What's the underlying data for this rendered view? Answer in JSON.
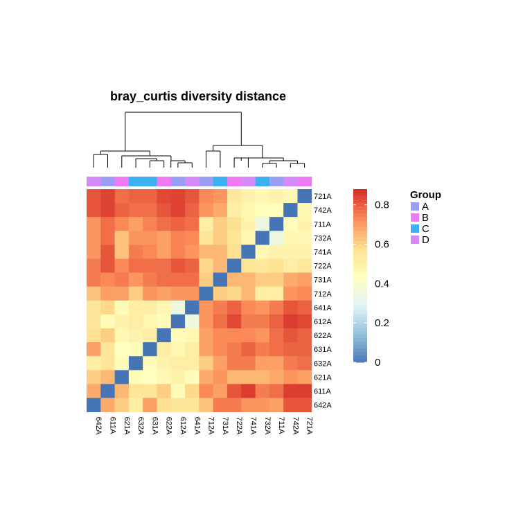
{
  "chart_data": {
    "type": "heatmap",
    "title": "bray_curtis diversity distance",
    "rows": [
      "721A",
      "742A",
      "711A",
      "732A",
      "741A",
      "722A",
      "731A",
      "712A",
      "641A",
      "612A",
      "622A",
      "631A",
      "632A",
      "621A",
      "611A",
      "642A"
    ],
    "cols": [
      "642A",
      "611A",
      "621A",
      "632A",
      "631A",
      "622A",
      "612A",
      "641A",
      "712A",
      "731A",
      "722A",
      "741A",
      "732A",
      "711A",
      "742A",
      "721A"
    ],
    "col_groups": [
      "D",
      "A",
      "B",
      "C",
      "C",
      "B",
      "A",
      "D",
      "A",
      "C",
      "B",
      "D",
      "C",
      "A",
      "D",
      "B"
    ],
    "values": [
      [
        0.82,
        0.85,
        0.78,
        0.8,
        0.8,
        0.84,
        0.85,
        0.82,
        0.74,
        0.72,
        0.55,
        0.5,
        0.48,
        0.5,
        0.48,
        0.0
      ],
      [
        0.82,
        0.85,
        0.8,
        0.78,
        0.78,
        0.82,
        0.85,
        0.8,
        0.72,
        0.68,
        0.52,
        0.48,
        0.45,
        0.45,
        0.0,
        0.48
      ],
      [
        0.72,
        0.78,
        0.74,
        0.7,
        0.75,
        0.78,
        0.8,
        0.78,
        0.52,
        0.62,
        0.58,
        0.5,
        0.35,
        0.0,
        0.45,
        0.5
      ],
      [
        0.72,
        0.78,
        0.64,
        0.72,
        0.72,
        0.7,
        0.75,
        0.74,
        0.56,
        0.62,
        0.56,
        0.48,
        0.0,
        0.35,
        0.48,
        0.48
      ],
      [
        0.72,
        0.82,
        0.64,
        0.76,
        0.74,
        0.7,
        0.75,
        0.72,
        0.66,
        0.66,
        0.58,
        0.0,
        0.48,
        0.5,
        0.5,
        0.5
      ],
      [
        0.76,
        0.82,
        0.74,
        0.78,
        0.78,
        0.78,
        0.82,
        0.8,
        0.6,
        0.66,
        0.0,
        0.56,
        0.55,
        0.58,
        0.52,
        0.55
      ],
      [
        0.76,
        0.74,
        0.76,
        0.72,
        0.76,
        0.78,
        0.78,
        0.78,
        0.62,
        0.0,
        0.66,
        0.66,
        0.62,
        0.62,
        0.68,
        0.7
      ],
      [
        0.64,
        0.7,
        0.7,
        0.62,
        0.72,
        0.7,
        0.72,
        0.72,
        0.0,
        0.62,
        0.6,
        0.66,
        0.52,
        0.52,
        0.72,
        0.74
      ],
      [
        0.56,
        0.6,
        0.46,
        0.52,
        0.52,
        0.48,
        0.36,
        0.0,
        0.72,
        0.76,
        0.8,
        0.74,
        0.72,
        0.76,
        0.82,
        0.8
      ],
      [
        0.56,
        0.46,
        0.5,
        0.52,
        0.48,
        0.46,
        0.0,
        0.36,
        0.72,
        0.78,
        0.84,
        0.76,
        0.76,
        0.8,
        0.86,
        0.84
      ],
      [
        0.58,
        0.62,
        0.48,
        0.5,
        0.52,
        0.0,
        0.46,
        0.48,
        0.7,
        0.74,
        0.74,
        0.74,
        0.72,
        0.78,
        0.82,
        0.8
      ],
      [
        0.7,
        0.56,
        0.44,
        0.46,
        0.0,
        0.52,
        0.48,
        0.52,
        0.7,
        0.74,
        0.76,
        0.8,
        0.76,
        0.78,
        0.8,
        0.8
      ],
      [
        0.52,
        0.56,
        0.46,
        0.0,
        0.46,
        0.5,
        0.52,
        0.52,
        0.62,
        0.7,
        0.76,
        0.76,
        0.7,
        0.7,
        0.76,
        0.78
      ],
      [
        0.62,
        0.66,
        0.0,
        0.46,
        0.44,
        0.48,
        0.5,
        0.46,
        0.68,
        0.72,
        0.66,
        0.66,
        0.66,
        0.68,
        0.72,
        0.7
      ],
      [
        0.68,
        0.0,
        0.66,
        0.56,
        0.56,
        0.62,
        0.46,
        0.6,
        0.74,
        0.7,
        0.82,
        0.86,
        0.76,
        0.78,
        0.86,
        0.86
      ],
      [
        0.0,
        0.68,
        0.62,
        0.52,
        0.7,
        0.58,
        0.56,
        0.56,
        0.64,
        0.76,
        0.76,
        0.72,
        0.72,
        0.7,
        0.82,
        0.82
      ]
    ],
    "colorbar": {
      "ticks": [
        "0",
        "0.2",
        "0.4",
        "0.6",
        "0.8"
      ],
      "tick_values": [
        0,
        0.2,
        0.4,
        0.6,
        0.8
      ],
      "range": [
        0,
        0.88
      ]
    },
    "colorscale": [
      "#4575b4",
      "#91bfdb",
      "#e0f3f8",
      "#ffffbf",
      "#fee090",
      "#fc8d59",
      "#d73027"
    ],
    "legend": {
      "title": "Group",
      "items": [
        {
          "label": "A",
          "color": "#9a9ff5"
        },
        {
          "label": "B",
          "color": "#f07af2"
        },
        {
          "label": "C",
          "color": "#3cb1f2"
        },
        {
          "label": "D",
          "color": "#d68af7"
        }
      ]
    }
  }
}
